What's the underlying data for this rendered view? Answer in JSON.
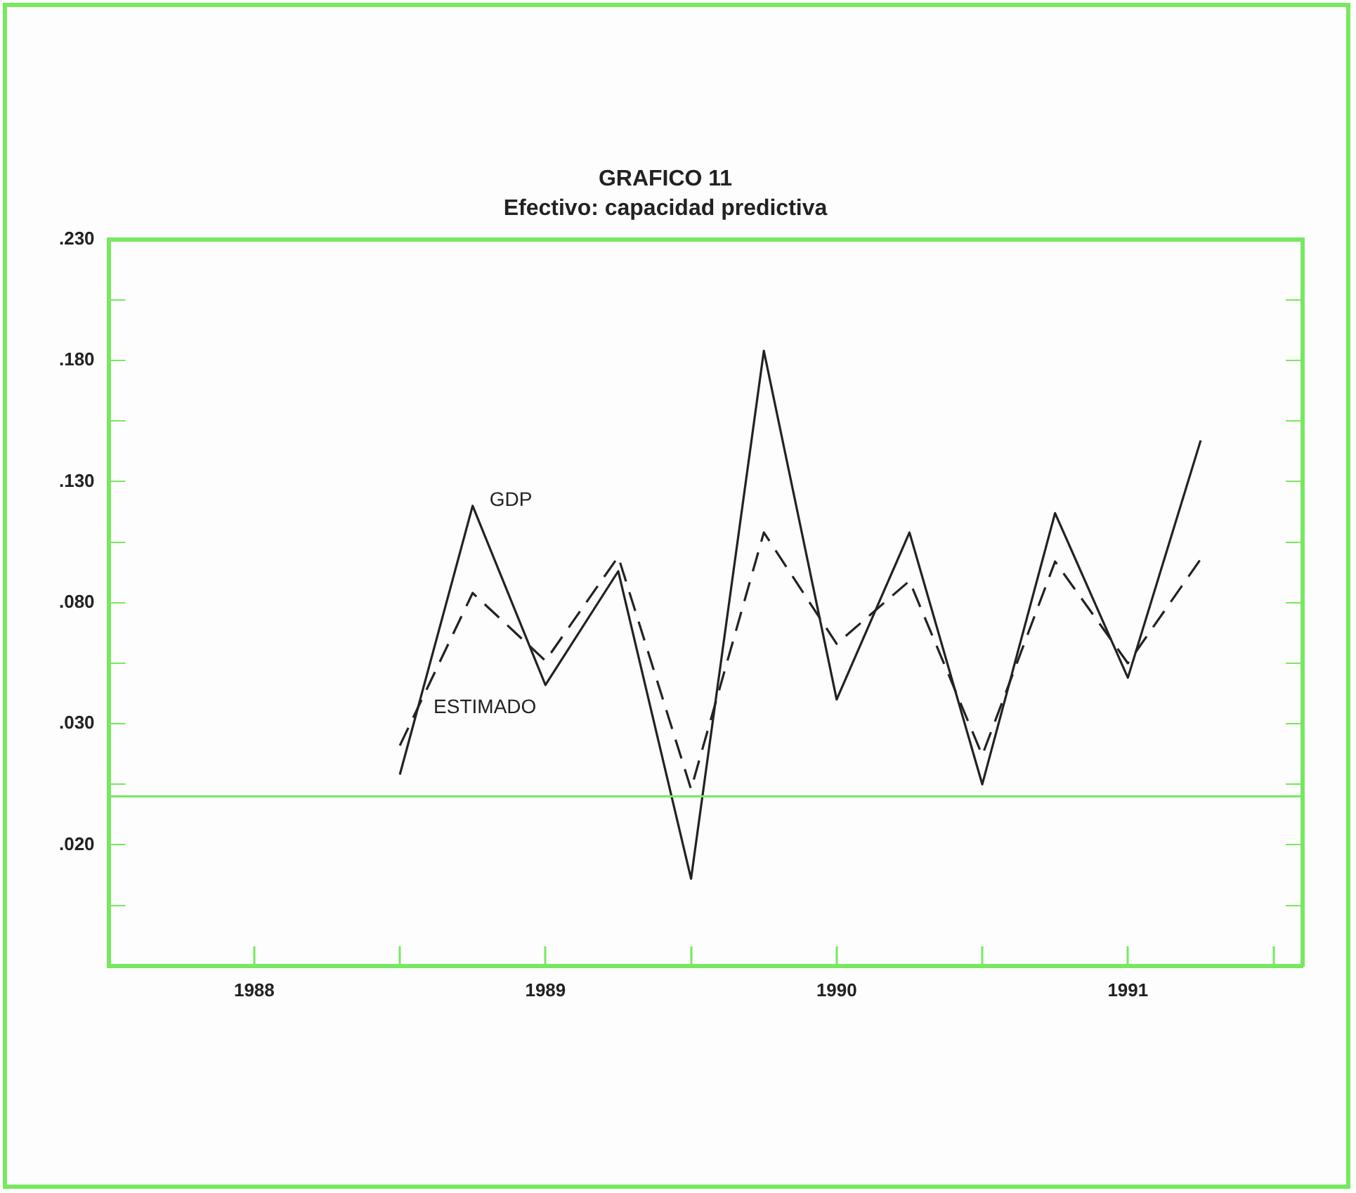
{
  "chart_data": {
    "type": "line",
    "title": "GRAFICO 11",
    "subtitle": "Efectivo: capacidad predictiva",
    "x": [
      1988.5,
      1988.75,
      1989,
      1989.25,
      1989.5,
      1989.75,
      1990,
      1990.25,
      1990.5,
      1990.75,
      1991,
      1991.25
    ],
    "series": [
      {
        "name": "GDP",
        "color": "#222222",
        "line_style": "solid",
        "values": [
          0.009,
          0.12,
          0.046,
          0.093,
          -0.034,
          0.184,
          0.04,
          0.109,
          0.005,
          0.117,
          0.049,
          0.147
        ]
      },
      {
        "name": "ESTIMADO",
        "color": "#222222",
        "line_style": "dashed",
        "values": [
          0.021,
          0.084,
          0.056,
          0.099,
          0.003,
          0.109,
          0.063,
          0.089,
          0.017,
          0.097,
          0.055,
          0.098
        ]
      }
    ],
    "xlim": [
      1987.5,
      1991.6
    ],
    "xticks": [
      {
        "value": 1988,
        "label": "1988"
      },
      {
        "value": 1988.5,
        "label": null
      },
      {
        "value": 1989,
        "label": "1989"
      },
      {
        "value": 1989.5,
        "label": null
      },
      {
        "value": 1990,
        "label": "1990"
      },
      {
        "value": 1990.5,
        "label": null
      },
      {
        "value": 1991,
        "label": "1991"
      },
      {
        "value": 1991.5,
        "label": null
      }
    ],
    "ylim": [
      -0.07,
      0.23
    ],
    "yticks": [
      {
        "value": 0.23,
        "label": ".230"
      },
      {
        "value": 0.205,
        "label": null
      },
      {
        "value": 0.18,
        "label": ".180"
      },
      {
        "value": 0.155,
        "label": null
      },
      {
        "value": 0.13,
        "label": ".130"
      },
      {
        "value": 0.105,
        "label": null
      },
      {
        "value": 0.08,
        "label": ".080"
      },
      {
        "value": 0.055,
        "label": null
      },
      {
        "value": 0.03,
        "label": ".030"
      },
      {
        "value": 0.005,
        "label": null
      },
      {
        "value": -0.02,
        "label": ".020"
      },
      {
        "value": -0.045,
        "label": null
      }
    ],
    "ref_lines": [
      {
        "axis": "y",
        "value": 0,
        "color": "#77e860"
      }
    ],
    "grid": false,
    "legend": false,
    "marker": "none"
  }
}
